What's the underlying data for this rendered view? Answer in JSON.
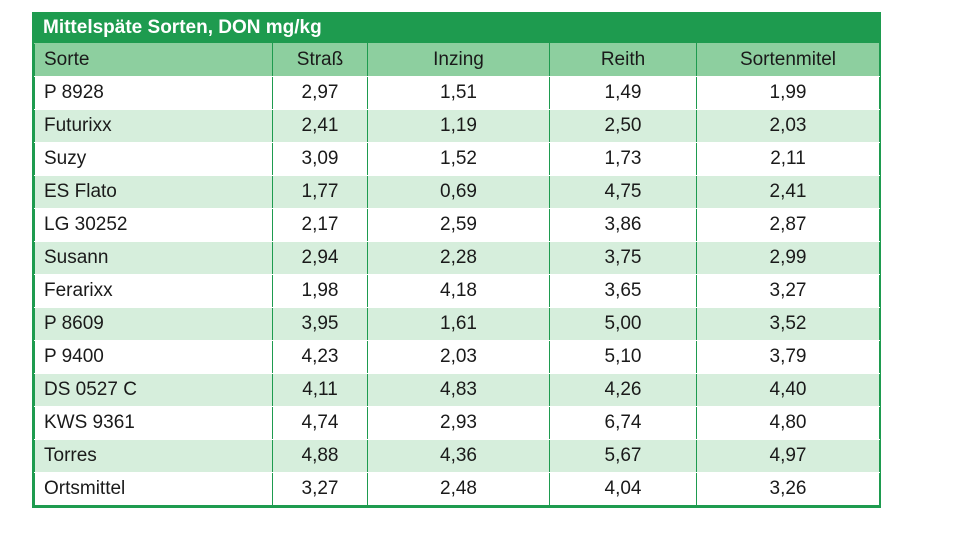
{
  "title": "Mittelspäte Sorten, DON mg/kg",
  "headers": [
    "Sorte",
    "Straß",
    "Inzing",
    "Reith",
    "Sortenmitel"
  ],
  "rows": [
    [
      "P 8928",
      "2,97",
      "1,51",
      "1,49",
      "1,99"
    ],
    [
      "Futurixx",
      "2,41",
      "1,19",
      "2,50",
      "2,03"
    ],
    [
      "Suzy",
      "3,09",
      "1,52",
      "1,73",
      "2,11"
    ],
    [
      "ES Flato",
      "1,77",
      "0,69",
      "4,75",
      "2,41"
    ],
    [
      "LG 30252",
      "2,17",
      "2,59",
      "3,86",
      "2,87"
    ],
    [
      "Susann",
      "2,94",
      "2,28",
      "3,75",
      "2,99"
    ],
    [
      "Ferarixx",
      "1,98",
      "4,18",
      "3,65",
      "3,27"
    ],
    [
      "P 8609",
      "3,95",
      "1,61",
      "5,00",
      "3,52"
    ],
    [
      "P 9400",
      "4,23",
      "2,03",
      "5,10",
      "3,79"
    ],
    [
      "DS 0527 C",
      "4,11",
      "4,83",
      "4,26",
      "4,40"
    ],
    [
      "KWS 9361",
      "4,74",
      "2,93",
      "6,74",
      "4,80"
    ],
    [
      "Torres",
      "4,88",
      "4,36",
      "5,67",
      "4,97"
    ],
    [
      "Ortsmittel",
      "3,27",
      "2,48",
      "4,04",
      "3,26"
    ]
  ]
}
